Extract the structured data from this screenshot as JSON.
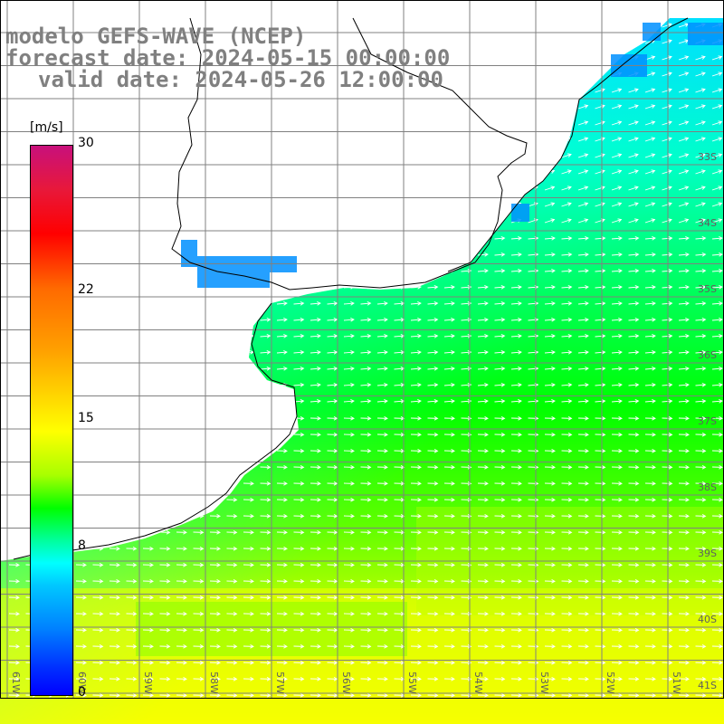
{
  "title": {
    "line1": "modelo GEFS-WAVE (NCEP)",
    "line2": "forecast date: 2024-05-15 00:00:00",
    "line3": "valid date: 2024-05-26 12:00:00"
  },
  "colorbar": {
    "unit": "[m/s]",
    "ticks": [
      {
        "label": "30",
        "value": 30
      },
      {
        "label": "22",
        "value": 22
      },
      {
        "label": "15",
        "value": 15
      },
      {
        "label": "8",
        "value": 8
      },
      {
        "label": "0",
        "value": 0
      }
    ],
    "colors": [
      "#c8107c",
      "#ff0000",
      "#ff6a00",
      "#ffd200",
      "#ffff00",
      "#00ff00",
      "#00ffff",
      "#0080ff",
      "#0000ff"
    ]
  },
  "map": {
    "lat_labels": [
      "33S",
      "34S",
      "35S",
      "36S",
      "37S",
      "38S",
      "39S",
      "40S",
      "41S"
    ],
    "lon_labels": [
      "61W",
      "60W",
      "59W",
      "58W",
      "57W",
      "56W",
      "55W",
      "54W",
      "53W",
      "52W",
      "51W"
    ],
    "arrow_color": "#ffffff",
    "land_color": "#ffffff",
    "grid_color": "#808080"
  }
}
